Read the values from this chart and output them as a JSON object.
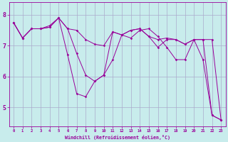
{
  "xlabel": "Windchill (Refroidissement éolien,°C)",
  "background_color": "#c8ecec",
  "line_color": "#990099",
  "grid_color": "#aaaacc",
  "xtick_labels": [
    "0",
    "1",
    "2",
    "3",
    "4",
    "5",
    "6",
    "7",
    "8",
    "9",
    "10",
    "11",
    "12",
    "13",
    "14",
    "15",
    "16",
    "17",
    "18",
    "19",
    "20",
    "21",
    "22",
    "23"
  ],
  "ytick_labels": [
    "5",
    "6",
    "7",
    "8"
  ],
  "yticks": [
    5,
    6,
    7,
    8
  ],
  "xlim": [
    -0.5,
    23.5
  ],
  "ylim": [
    4.4,
    8.4
  ],
  "series": [
    [
      7.75,
      7.25,
      7.55,
      7.55,
      7.6,
      7.9,
      6.7,
      5.45,
      5.35,
      5.85,
      6.05,
      6.55,
      7.35,
      7.25,
      7.5,
      7.55,
      7.3,
      6.95,
      6.55,
      6.55,
      7.2,
      6.55,
      4.75,
      4.6
    ],
    [
      7.75,
      7.25,
      7.55,
      7.55,
      7.6,
      7.9,
      7.55,
      6.75,
      6.05,
      5.85,
      6.05,
      7.45,
      7.35,
      7.5,
      7.55,
      7.3,
      6.95,
      7.2,
      7.2,
      7.05,
      7.2,
      7.2,
      4.75,
      4.6
    ],
    [
      7.75,
      7.25,
      7.55,
      7.55,
      7.65,
      7.9,
      7.55,
      7.5,
      7.2,
      7.05,
      7.0,
      7.45,
      7.35,
      7.5,
      7.55,
      7.3,
      7.2,
      7.25,
      7.2,
      7.05,
      7.2,
      7.2,
      7.2,
      4.6
    ]
  ]
}
